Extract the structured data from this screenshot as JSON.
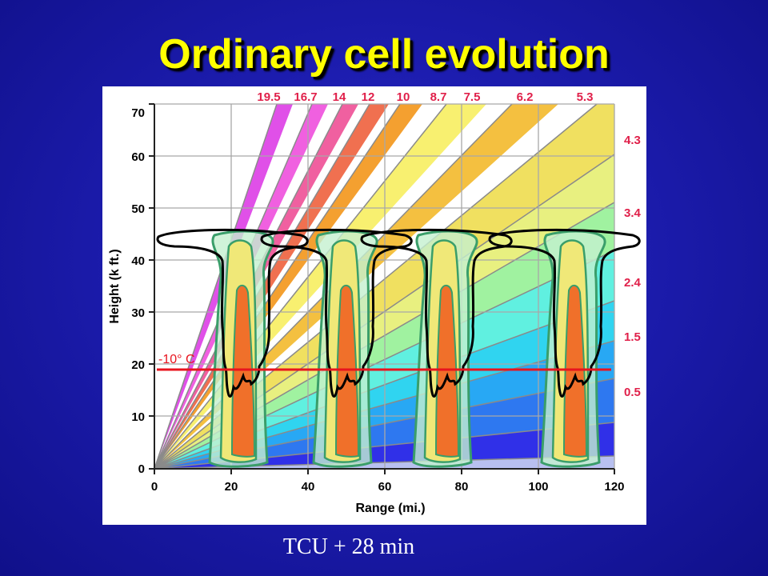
{
  "slide": {
    "title": "Ordinary cell evolution",
    "caption": "TCU + 28 min"
  },
  "diagram": {
    "y_axis": {
      "label": "Height (k ft.)",
      "ticks": [
        "0",
        "10",
        "20",
        "30",
        "40",
        "50",
        "60",
        "70"
      ]
    },
    "x_axis": {
      "label": "Range (mi.)",
      "ticks": [
        "0",
        "20",
        "40",
        "60",
        "80",
        "100",
        "120"
      ]
    },
    "top_labels": [
      "19.5",
      "16.7",
      "14",
      "12",
      "10",
      "8.7",
      "7.5",
      "6.2",
      "5.3"
    ],
    "right_labels": [
      "4.3",
      "3.4",
      "2.4",
      "1.5",
      "0.5"
    ],
    "isotherm_label": "-10° C",
    "colors": {
      "isotherm": "#e8141e",
      "beam_labels": "#e0204a",
      "cell_outline": "#3a9e6a",
      "cell_light": "#c4f0d0",
      "cell_mid": "#f0e878",
      "cell_core": "#f0702a"
    }
  }
}
